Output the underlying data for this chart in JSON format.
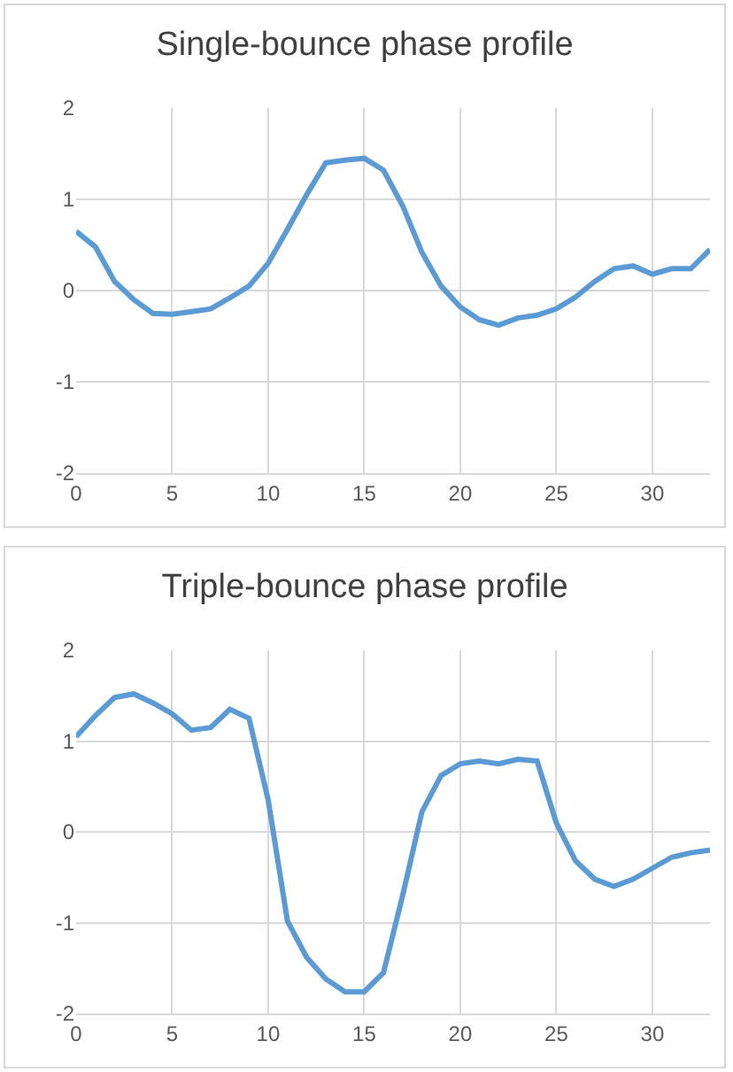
{
  "chart_data": [
    {
      "type": "line",
      "title": "Single-bounce phase profile",
      "x": [
        0,
        1,
        2,
        3,
        4,
        5,
        6,
        7,
        8,
        9,
        10,
        11,
        12,
        13,
        14,
        15,
        16,
        17,
        18,
        19,
        20,
        21,
        22,
        23,
        24,
        25,
        26,
        27,
        28,
        29,
        30,
        31,
        32,
        33
      ],
      "series": [
        {
          "color": "#5b9bd5",
          "values": [
            0.65,
            0.48,
            0.1,
            -0.1,
            -0.25,
            -0.26,
            -0.23,
            -0.2,
            -0.08,
            0.05,
            0.3,
            0.67,
            1.05,
            1.4,
            1.43,
            1.45,
            1.32,
            0.93,
            0.42,
            0.05,
            -0.18,
            -0.32,
            -0.38,
            -0.3,
            -0.27,
            -0.2,
            -0.07,
            0.1,
            0.24,
            0.27,
            0.18,
            0.24,
            0.24,
            0.45
          ]
        }
      ],
      "xlim": [
        0,
        33
      ],
      "xticks": [
        0,
        5,
        10,
        15,
        20,
        25,
        30
      ],
      "ylim": [
        -2,
        2
      ],
      "yticks": [
        -2,
        -1,
        0,
        1,
        2
      ],
      "grid": true,
      "marker": "none",
      "line_style": "solid"
    },
    {
      "type": "line",
      "title": "Triple-bounce phase profile",
      "x": [
        0,
        1,
        2,
        3,
        4,
        5,
        6,
        7,
        8,
        9,
        10,
        11,
        12,
        13,
        14,
        15,
        16,
        17,
        18,
        19,
        20,
        21,
        22,
        23,
        24,
        25,
        26,
        27,
        28,
        29,
        30,
        31,
        32,
        33
      ],
      "series": [
        {
          "color": "#5b9bd5",
          "values": [
            1.05,
            1.28,
            1.48,
            1.52,
            1.42,
            1.3,
            1.12,
            1.15,
            1.35,
            1.25,
            0.35,
            -0.98,
            -1.38,
            -1.62,
            -1.76,
            -1.76,
            -1.55,
            -0.7,
            0.22,
            0.62,
            0.75,
            0.78,
            0.75,
            0.8,
            0.78,
            0.1,
            -0.32,
            -0.52,
            -0.6,
            -0.52,
            -0.4,
            -0.28,
            -0.23,
            -0.2
          ]
        }
      ],
      "xlim": [
        0,
        33
      ],
      "xticks": [
        0,
        5,
        10,
        15,
        20,
        25,
        30
      ],
      "ylim": [
        -2,
        2
      ],
      "yticks": [
        -2,
        -1,
        0,
        1,
        2
      ],
      "grid": true,
      "marker": "none",
      "line_style": "solid"
    }
  ]
}
